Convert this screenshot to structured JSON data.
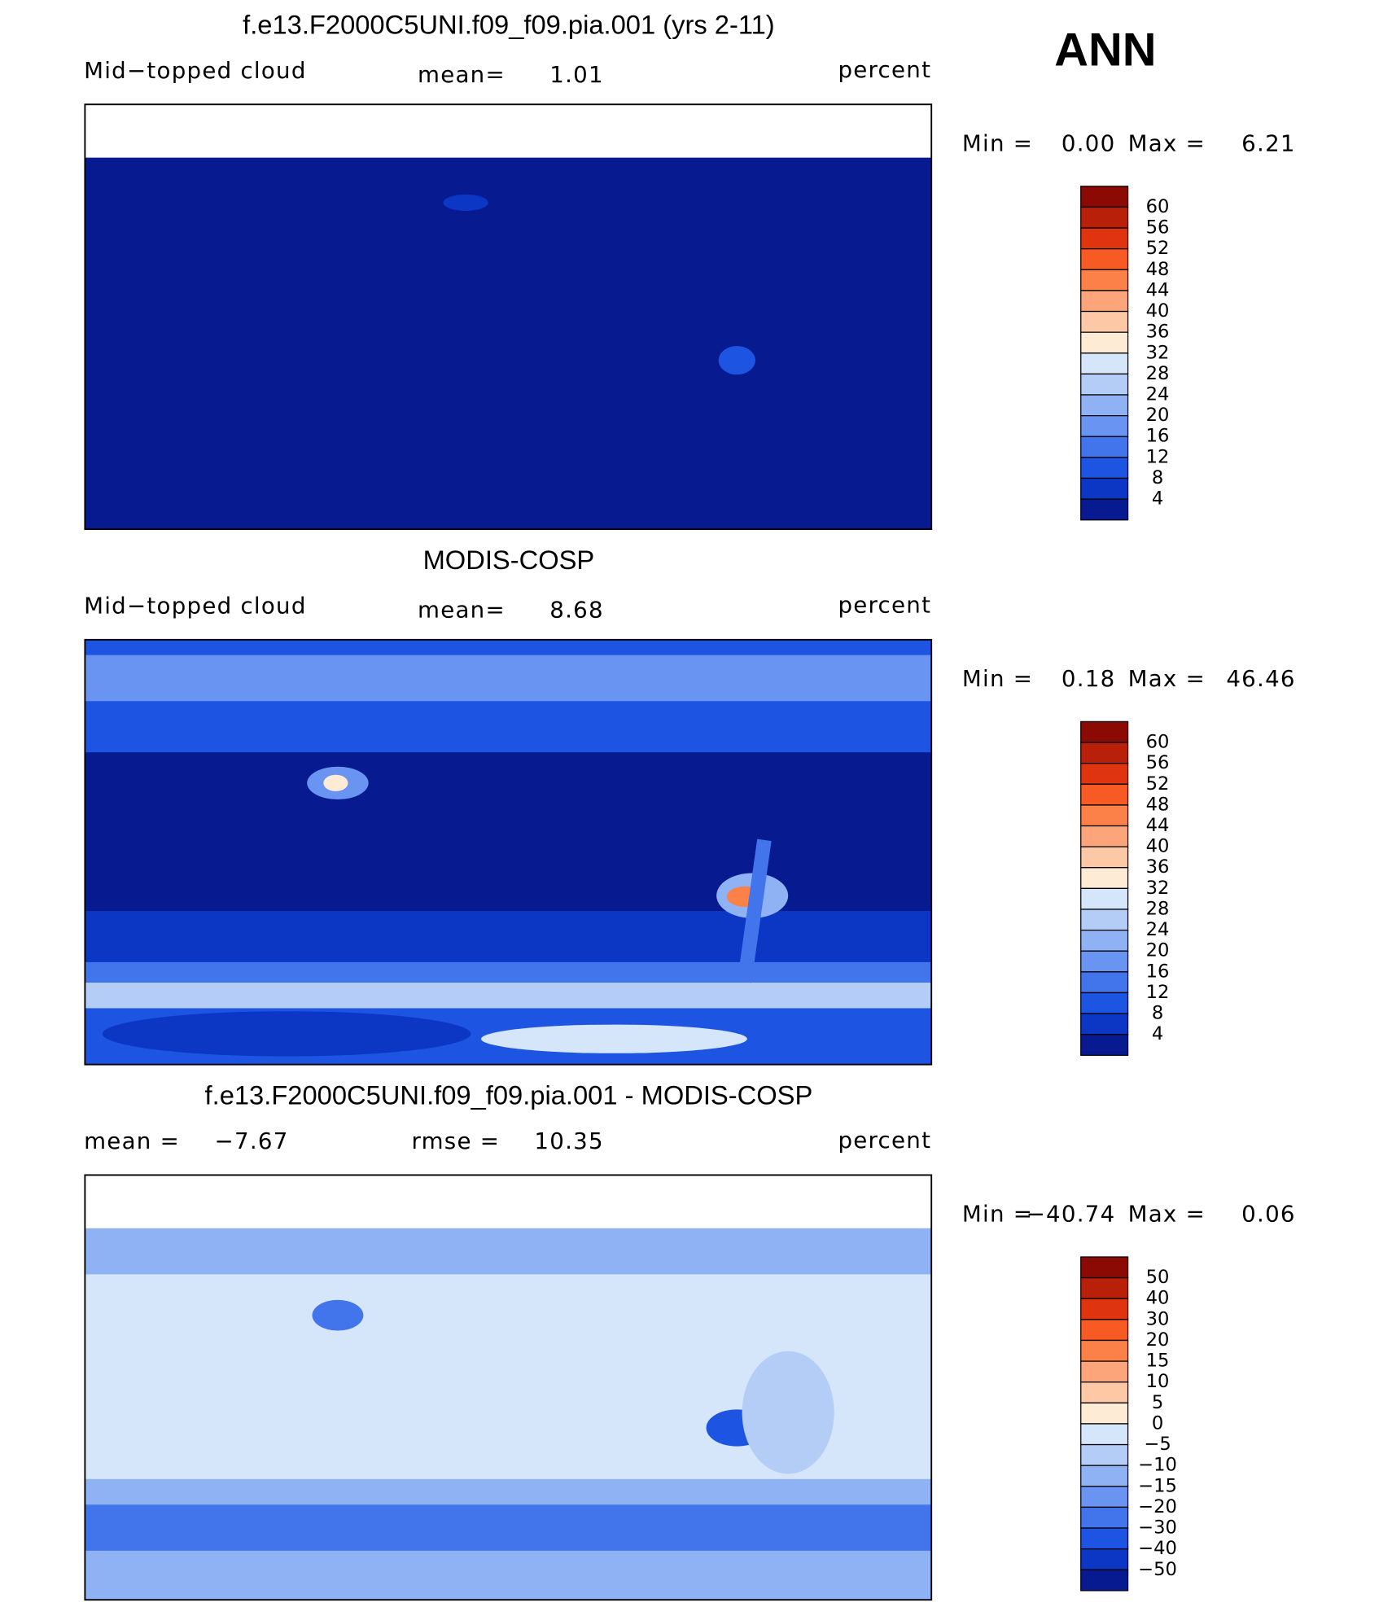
{
  "annotation": "ANN",
  "colorbar_colors": [
    "#8c0a04",
    "#b8200a",
    "#de3410",
    "#f75a22",
    "#fb8148",
    "#fca57a",
    "#fdc8a6",
    "#fdebd6",
    "#d6e6fa",
    "#b4cdf7",
    "#8fb2f4",
    "#6994f1",
    "#4274ec",
    "#1e54e2",
    "#0c36c4",
    "#081a90"
  ],
  "panels": [
    {
      "title": "f.e13.F2000C5UNI.f09_f09.pia.001 (yrs 2-11)",
      "left_label": "Mid−topped cloud",
      "center_label": "mean=",
      "center_value": "1.01",
      "right": "percent",
      "min_label": "Min =",
      "min": "0.00",
      "max_label": "Max =",
      "max": "6.21",
      "colorbar_labels": [
        "60",
        "56",
        "52",
        "48",
        "44",
        "40",
        "36",
        "32",
        "28",
        "24",
        "20",
        "16",
        "12",
        "8",
        "4"
      ]
    },
    {
      "title": "MODIS-COSP",
      "left_label": "Mid−topped cloud",
      "center_label": "mean=",
      "center_value": "8.68",
      "right": "percent",
      "min_label": "Min =",
      "min": "0.18",
      "max_label": "Max =",
      "max": "46.46",
      "colorbar_labels": [
        "60",
        "56",
        "52",
        "48",
        "44",
        "40",
        "36",
        "32",
        "28",
        "24",
        "20",
        "16",
        "12",
        "8",
        "4"
      ]
    },
    {
      "title": "f.e13.F2000C5UNI.f09_f09.pia.001 - MODIS-COSP",
      "left_label": "mean =",
      "left_value": "−7.67",
      "center_label": "rmse =",
      "center_value": "10.35",
      "right": "percent",
      "min_label": "Min =",
      "min": "−40.74",
      "max_label": "Max =",
      "max": "0.06",
      "colorbar_labels": [
        "50",
        "40",
        "30",
        "20",
        "15",
        "10",
        "5",
        "0",
        "−5",
        "−10",
        "−15",
        "−20",
        "−30",
        "−40",
        "−50"
      ]
    }
  ]
}
